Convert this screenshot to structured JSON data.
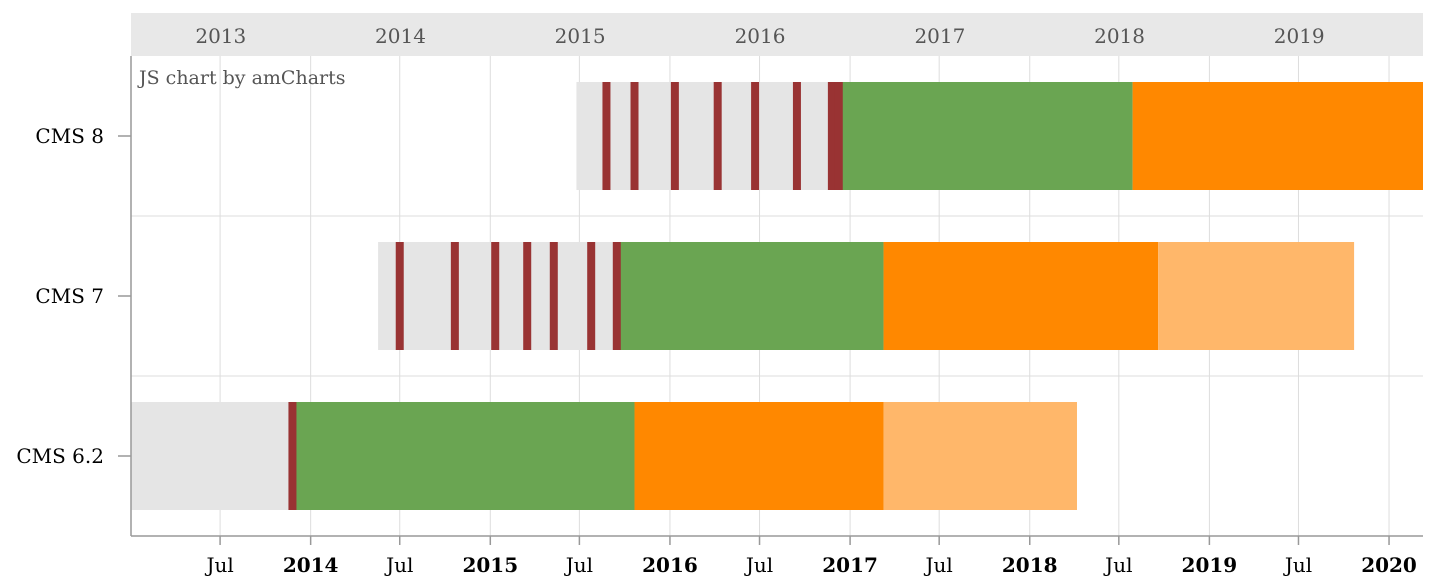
{
  "chart_data": {
    "type": "gantt",
    "credit": "JS chart by amCharts",
    "categories": [
      "CMS 8",
      "CMS 7",
      "CMS 6.2"
    ],
    "top_axis_labels": [
      "2013",
      "2014",
      "2015",
      "2016",
      "2017",
      "2018",
      "2019"
    ],
    "bottom_axis_labels": [
      {
        "date": "2013-07-01",
        "label": "Jul",
        "bold": false
      },
      {
        "date": "2014-01-01",
        "label": "2014",
        "bold": true
      },
      {
        "date": "2014-07-01",
        "label": "Jul",
        "bold": false
      },
      {
        "date": "2015-01-01",
        "label": "2015",
        "bold": true
      },
      {
        "date": "2015-07-01",
        "label": "Jul",
        "bold": false
      },
      {
        "date": "2016-01-01",
        "label": "2016",
        "bold": true
      },
      {
        "date": "2016-07-01",
        "label": "Jul",
        "bold": false
      },
      {
        "date": "2017-01-01",
        "label": "2017",
        "bold": true
      },
      {
        "date": "2017-07-01",
        "label": "Jul",
        "bold": false
      },
      {
        "date": "2018-01-01",
        "label": "2018",
        "bold": true
      },
      {
        "date": "2018-07-01",
        "label": "Jul",
        "bold": false
      },
      {
        "date": "2019-01-01",
        "label": "2019",
        "bold": true
      },
      {
        "date": "2019-07-01",
        "label": "Jul",
        "bold": false
      },
      {
        "date": "2020-01-01",
        "label": "2020",
        "bold": true
      }
    ],
    "x_range": [
      "2013-01-01",
      "2020-03-10"
    ],
    "grid": true,
    "colors": {
      "pre_release": "#e5e5e5",
      "release_marker": "#993333",
      "active": "#6aa552",
      "security": "#ff8800",
      "extended": "#ffb76a",
      "grid": "#dddddd",
      "axis": "#999999",
      "band": "#e8e8e8"
    },
    "segments": [
      {
        "category": "CMS 8",
        "start": "2015-06-25",
        "end": "2016-12-12",
        "color": "pre_release"
      },
      {
        "category": "CMS 8",
        "start": "2016-12-12",
        "end": "2018-07-29",
        "color": "active"
      },
      {
        "category": "CMS 8",
        "start": "2018-07-29",
        "end": "2020-03-10",
        "color": "security"
      },
      {
        "category": "CMS 7",
        "start": "2014-05-18",
        "end": "2015-09-20",
        "color": "pre_release"
      },
      {
        "category": "CMS 7",
        "start": "2015-09-20",
        "end": "2017-03-10",
        "color": "active"
      },
      {
        "category": "CMS 7",
        "start": "2017-03-10",
        "end": "2018-09-19",
        "color": "security"
      },
      {
        "category": "CMS 7",
        "start": "2018-09-19",
        "end": "2019-10-22",
        "color": "extended"
      },
      {
        "category": "CMS 6.2",
        "start": "2013-01-01",
        "end": "2013-11-25",
        "color": "pre_release"
      },
      {
        "category": "CMS 6.2",
        "start": "2013-11-25",
        "end": "2015-10-21",
        "color": "active"
      },
      {
        "category": "CMS 6.2",
        "start": "2015-10-21",
        "end": "2017-03-10",
        "color": "security"
      },
      {
        "category": "CMS 6.2",
        "start": "2017-03-10",
        "end": "2018-04-07",
        "color": "extended"
      }
    ],
    "release_markers": [
      {
        "category": "CMS 8",
        "dates": [
          "2015-08-25",
          "2015-10-21",
          "2016-01-11",
          "2016-04-07",
          "2016-06-22",
          "2016-09-15",
          "2016-11-25",
          "2016-12-09"
        ]
      },
      {
        "category": "CMS 7",
        "dates": [
          "2014-07-01",
          "2014-10-21",
          "2015-01-11",
          "2015-03-17",
          "2015-05-10",
          "2015-07-25",
          "2015-09-15"
        ]
      },
      {
        "category": "CMS 6.2",
        "dates": [
          "2013-11-25"
        ]
      }
    ]
  }
}
